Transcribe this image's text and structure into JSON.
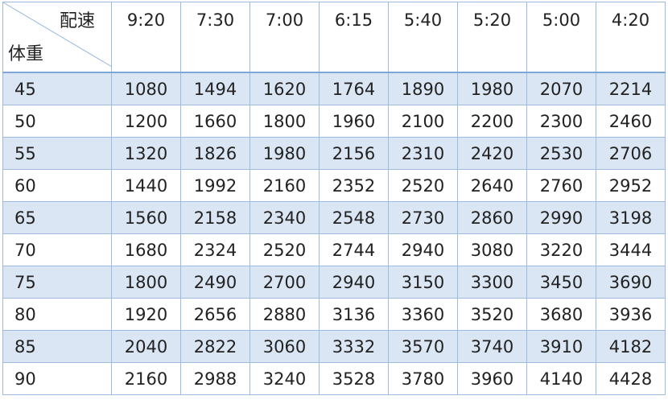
{
  "table": {
    "corner": {
      "column_header": "配速",
      "row_header": "体重"
    },
    "paces": [
      "9:20",
      "7:30",
      "7:00",
      "6:15",
      "5:40",
      "5:20",
      "5:00",
      "4:20"
    ],
    "rows": [
      {
        "weight": "45",
        "values": [
          "1080",
          "1494",
          "1620",
          "1764",
          "1890",
          "1980",
          "2070",
          "2214"
        ]
      },
      {
        "weight": "50",
        "values": [
          "1200",
          "1660",
          "1800",
          "1960",
          "2100",
          "2200",
          "2300",
          "2460"
        ]
      },
      {
        "weight": "55",
        "values": [
          "1320",
          "1826",
          "1980",
          "2156",
          "2310",
          "2420",
          "2530",
          "2706"
        ]
      },
      {
        "weight": "60",
        "values": [
          "1440",
          "1992",
          "2160",
          "2352",
          "2520",
          "2640",
          "2760",
          "2952"
        ]
      },
      {
        "weight": "65",
        "values": [
          "1560",
          "2158",
          "2340",
          "2548",
          "2730",
          "2860",
          "2990",
          "3198"
        ]
      },
      {
        "weight": "70",
        "values": [
          "1680",
          "2324",
          "2520",
          "2744",
          "2940",
          "3080",
          "3220",
          "3444"
        ]
      },
      {
        "weight": "75",
        "values": [
          "1800",
          "2490",
          "2700",
          "2940",
          "3150",
          "3300",
          "3450",
          "3690"
        ]
      },
      {
        "weight": "80",
        "values": [
          "1920",
          "2656",
          "2880",
          "3136",
          "3360",
          "3520",
          "3680",
          "3936"
        ]
      },
      {
        "weight": "85",
        "values": [
          "2040",
          "2822",
          "3060",
          "3332",
          "3570",
          "3740",
          "3910",
          "4182"
        ]
      },
      {
        "weight": "90",
        "values": [
          "2160",
          "2988",
          "3240",
          "3528",
          "3780",
          "3960",
          "4140",
          "4428"
        ]
      }
    ],
    "colors": {
      "border": "#9bbbe0",
      "shaded_row": "#dbe6f4",
      "text": "#222222"
    }
  }
}
